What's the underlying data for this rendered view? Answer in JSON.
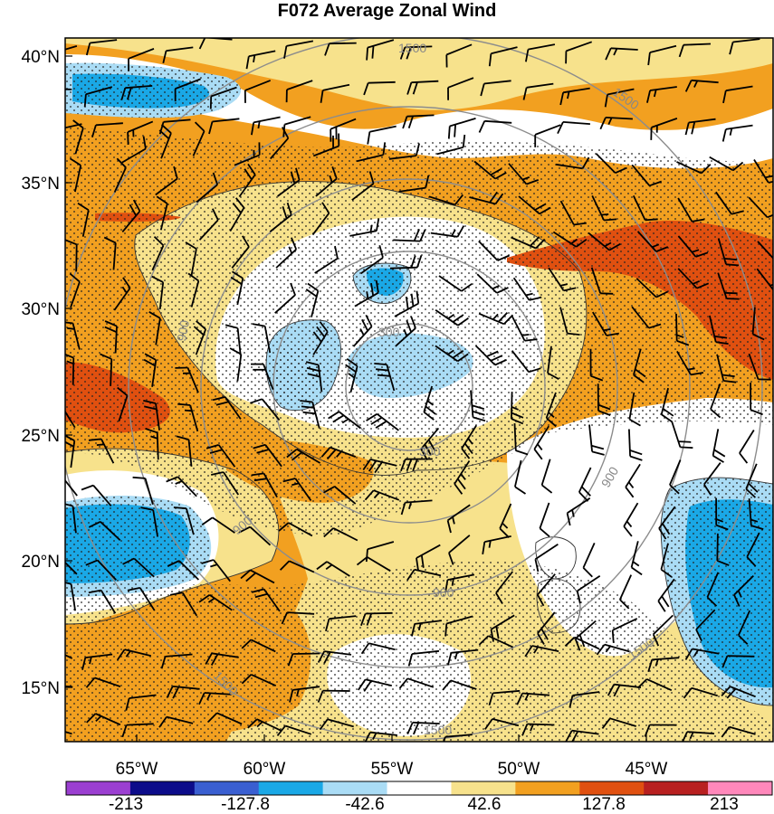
{
  "title": "F072 Average Zonal Wind",
  "latitude_labels": [
    "40°N",
    "35°N",
    "30°N",
    "25°N",
    "20°N",
    "15°N"
  ],
  "longitude_labels": [
    "65°W",
    "60°W",
    "55°W",
    "50°W",
    "45°W"
  ],
  "range_rings": {
    "labels": [
      "300",
      "300",
      "900",
      "900",
      "900",
      "900",
      "1500",
      "1500",
      "1500",
      "1500",
      "1500"
    ],
    "color": "#8c8c8c"
  },
  "colorbar": {
    "labels": [
      "-213",
      "-127.8",
      "-42.6",
      "42.6",
      "127.8",
      "213"
    ],
    "colors": [
      "#9b3fd1",
      "#0c0c8a",
      "#3a5fd1",
      "#1aa8e6",
      "#aadcf5",
      "#ffffff",
      "#f7e28c",
      "#f2a020",
      "#e05010",
      "#b82020",
      "#ff88bb"
    ]
  },
  "field_colors": {
    "light_blue": "#aadcf5",
    "blue": "#1aa8e6",
    "white": "#ffffff",
    "light_yellow": "#f7e28c",
    "orange": "#f2a020",
    "red_orange": "#e05010"
  }
}
